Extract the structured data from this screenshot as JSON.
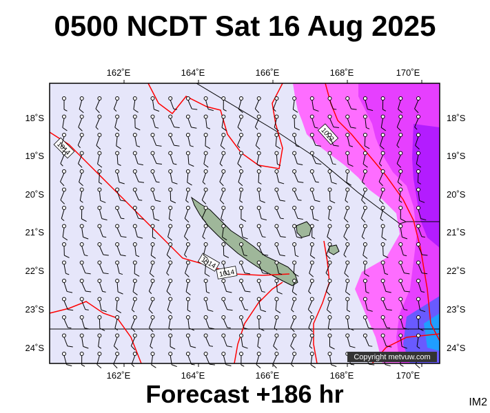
{
  "title": "0500 NCDT Sat 16 Aug 2025",
  "footer": "Forecast +186 hr",
  "image_code": "IM2",
  "copyright": "Copyright metvuw.com",
  "lon_labels": [
    "162˚E",
    "164˚E",
    "166˚E",
    "168˚E",
    "170˚E"
  ],
  "lat_labels": [
    "18˚S",
    "19˚S",
    "20˚S",
    "21˚S",
    "22˚S",
    "23˚S",
    "24˚S"
  ],
  "isobar_labels": [
    "1014",
    "1012",
    "1014",
    "1014"
  ],
  "colors": {
    "ocean": "#e6e6fa",
    "isobar": "#ff0000",
    "rain_light": "#ff66ff",
    "rain_mid": "#cc00ff",
    "rain_heavy": "#6600ff",
    "rain_extreme": "#0066ff",
    "land": "#9fb79a"
  }
}
